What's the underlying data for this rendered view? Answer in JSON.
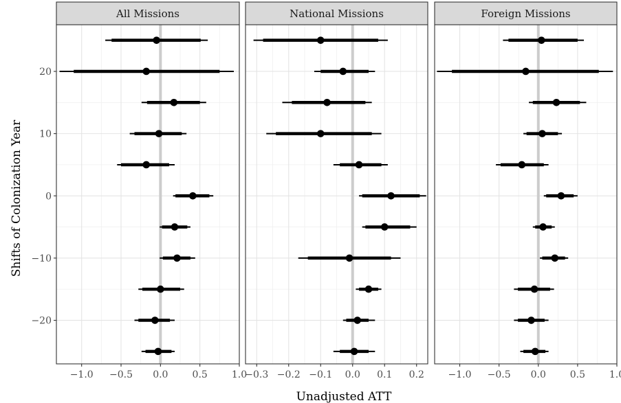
{
  "chart_data": {
    "type": "forest",
    "xlabel": "Unadjusted ATT",
    "ylabel": "Shifts of Colonization Year",
    "ylim": [
      -27,
      27.5
    ],
    "yticks": [
      -20,
      -10,
      0,
      10,
      20
    ],
    "grid": true,
    "zero_line": true,
    "shifts": [
      25,
      20,
      15,
      10,
      5,
      0,
      -5,
      -10,
      -15,
      -20,
      -25
    ],
    "panels": [
      {
        "title": "All Missions",
        "xlim": [
          -1.32,
          1.0
        ],
        "xticks": [
          -1.0,
          -0.5,
          0.0,
          0.5,
          1.0
        ],
        "xtick_labels": [
          "−1.0",
          "−0.5",
          "0.0",
          "0.5",
          "1.0"
        ],
        "estimates": [
          -0.05,
          -0.18,
          0.17,
          -0.02,
          -0.18,
          0.41,
          0.18,
          0.21,
          0.0,
          -0.07,
          -0.03
        ],
        "ci95": [
          [
            -0.7,
            0.6
          ],
          [
            -1.28,
            0.93
          ],
          [
            -0.24,
            0.58
          ],
          [
            -0.39,
            0.33
          ],
          [
            -0.55,
            0.18
          ],
          [
            0.16,
            0.67
          ],
          [
            -0.01,
            0.38
          ],
          [
            -0.01,
            0.44
          ],
          [
            -0.28,
            0.3
          ],
          [
            -0.33,
            0.18
          ],
          [
            -0.24,
            0.18
          ]
        ],
        "ci90": [
          [
            -0.62,
            0.51
          ],
          [
            -1.1,
            0.75
          ],
          [
            -0.17,
            0.5
          ],
          [
            -0.33,
            0.27
          ],
          [
            -0.5,
            0.11
          ],
          [
            0.19,
            0.62
          ],
          [
            0.02,
            0.34
          ],
          [
            0.03,
            0.38
          ],
          [
            -0.23,
            0.25
          ],
          [
            -0.28,
            0.12
          ],
          [
            -0.19,
            0.14
          ]
        ]
      },
      {
        "title": "National Missions",
        "xlim": [
          -0.335,
          0.235
        ],
        "xticks": [
          -0.3,
          -0.2,
          -0.1,
          0.0,
          0.1,
          0.2
        ],
        "xtick_labels": [
          "−0.3",
          "−0.2",
          "−0.1",
          "0.0",
          "0.1",
          "0.2"
        ],
        "estimates": [
          -0.1,
          -0.03,
          -0.08,
          -0.1,
          0.02,
          0.12,
          0.1,
          -0.01,
          0.05,
          0.015,
          0.005
        ],
        "ci95": [
          [
            -0.31,
            0.11
          ],
          [
            -0.12,
            0.07
          ],
          [
            -0.22,
            0.06
          ],
          [
            -0.27,
            0.09
          ],
          [
            -0.06,
            0.11
          ],
          [
            0.02,
            0.23
          ],
          [
            0.03,
            0.2
          ],
          [
            -0.17,
            0.15
          ],
          [
            0.01,
            0.09
          ],
          [
            -0.03,
            0.07
          ],
          [
            -0.06,
            0.07
          ]
        ],
        "ci90": [
          [
            -0.28,
            0.08
          ],
          [
            -0.1,
            0.05
          ],
          [
            -0.19,
            0.04
          ],
          [
            -0.24,
            0.06
          ],
          [
            -0.04,
            0.09
          ],
          [
            0.03,
            0.21
          ],
          [
            0.04,
            0.18
          ],
          [
            -0.14,
            0.12
          ],
          [
            0.02,
            0.08
          ],
          [
            -0.02,
            0.05
          ],
          [
            -0.04,
            0.05
          ]
        ]
      },
      {
        "title": "Foreign Missions",
        "xlim": [
          -1.32,
          1.0
        ],
        "xticks": [
          -1.0,
          -0.5,
          0.0,
          0.5,
          1.0
        ],
        "xtick_labels": [
          "−1.0",
          "−0.5",
          "0.0",
          "0.5",
          "1.0"
        ],
        "estimates": [
          0.04,
          -0.16,
          0.23,
          0.05,
          -0.21,
          0.29,
          0.06,
          0.21,
          -0.05,
          -0.09,
          -0.04
        ],
        "ci95": [
          [
            -0.45,
            0.58
          ],
          [
            -1.29,
            0.95
          ],
          [
            -0.12,
            0.61
          ],
          [
            -0.19,
            0.3
          ],
          [
            -0.54,
            0.13
          ],
          [
            0.07,
            0.5
          ],
          [
            -0.07,
            0.21
          ],
          [
            0.02,
            0.38
          ],
          [
            -0.31,
            0.2
          ],
          [
            -0.31,
            0.13
          ],
          [
            -0.23,
            0.13
          ]
        ],
        "ci90": [
          [
            -0.38,
            0.5
          ],
          [
            -1.1,
            0.77
          ],
          [
            -0.07,
            0.53
          ],
          [
            -0.15,
            0.25
          ],
          [
            -0.48,
            0.07
          ],
          [
            0.1,
            0.45
          ],
          [
            -0.04,
            0.17
          ],
          [
            0.05,
            0.34
          ],
          [
            -0.26,
            0.15
          ],
          [
            -0.26,
            0.08
          ],
          [
            -0.19,
            0.09
          ]
        ]
      }
    ]
  }
}
